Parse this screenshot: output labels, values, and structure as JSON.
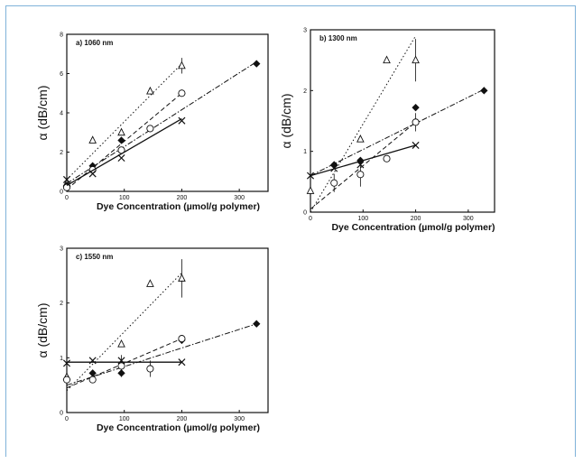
{
  "chart_data": [
    {
      "type": "scatter",
      "title": "a) 1060 nm",
      "xlabel": "Dye Concentration (µmol/g polymer)",
      "ylabel": "α (dB/cm)",
      "xlim": [
        0,
        350
      ],
      "ylim": [
        0,
        8
      ],
      "xticks": [
        "0",
        "100",
        "200",
        "300"
      ],
      "yticks": [
        "0",
        "2",
        "4",
        "6",
        "8"
      ],
      "series": [
        {
          "marker": "triangle",
          "line": "dotted",
          "points": [
            [
              0,
              0.4
            ],
            [
              45,
              2.6
            ],
            [
              95,
              3.0
            ],
            [
              145,
              5.1
            ],
            [
              200,
              6.4
            ]
          ],
          "errors": [
            0,
            0,
            0,
            0,
            0.4
          ],
          "fit": [
            [
              0,
              0.6
            ],
            [
              200,
              6.5
            ]
          ]
        },
        {
          "marker": "diamond",
          "line": "dashdot",
          "points": [
            [
              0,
              0.3
            ],
            [
              45,
              1.3
            ],
            [
              95,
              2.6
            ],
            [
              200,
              5.0
            ],
            [
              330,
              6.5
            ]
          ],
          "errors": [
            0,
            0,
            0,
            0,
            0
          ],
          "fit": [
            [
              0,
              0.4
            ],
            [
              330,
              6.6
            ]
          ]
        },
        {
          "marker": "circle",
          "line": "dashed",
          "points": [
            [
              0,
              0.2
            ],
            [
              45,
              1.1
            ],
            [
              95,
              2.1
            ],
            [
              145,
              3.2
            ],
            [
              200,
              5.0
            ]
          ],
          "errors": [
            0,
            0,
            0,
            0,
            0
          ],
          "fit": [
            [
              0,
              0.1
            ],
            [
              200,
              5.0
            ]
          ]
        },
        {
          "marker": "cross",
          "line": "solid",
          "points": [
            [
              0,
              0.6
            ],
            [
              45,
              0.9
            ],
            [
              95,
              1.7
            ],
            [
              200,
              3.6
            ]
          ],
          "errors": [
            0,
            0,
            0,
            0
          ],
          "fit": [
            [
              0,
              0.3
            ],
            [
              200,
              3.7
            ]
          ]
        }
      ]
    },
    {
      "type": "scatter",
      "title": "b) 1300 nm",
      "xlabel": "Dye Concentration (µmol/g polymer)",
      "ylabel": "α (dB/cm)",
      "xlim": [
        0,
        350
      ],
      "ylim": [
        0,
        3
      ],
      "xticks": [
        "0",
        "100",
        "200",
        "300"
      ],
      "yticks": [
        "0",
        "1",
        "2",
        "3"
      ],
      "series": [
        {
          "marker": "triangle",
          "line": "dotted",
          "points": [
            [
              0,
              0.35
            ],
            [
              95,
              1.2
            ],
            [
              145,
              2.5
            ],
            [
              200,
              2.5
            ]
          ],
          "errors": [
            0,
            0,
            0,
            0.35
          ],
          "fit": [
            [
              0,
              0.0
            ],
            [
              200,
              2.9
            ]
          ]
        },
        {
          "marker": "diamond",
          "line": "dashdot",
          "points": [
            [
              45,
              0.78
            ],
            [
              95,
              0.85
            ],
            [
              200,
              1.72
            ],
            [
              330,
              2.0
            ]
          ],
          "errors": [
            0,
            0,
            0,
            0
          ],
          "fit": [
            [
              0,
              0.6
            ],
            [
              330,
              2.02
            ]
          ]
        },
        {
          "marker": "circle",
          "line": "dashed",
          "points": [
            [
              45,
              0.48
            ],
            [
              95,
              0.62
            ],
            [
              145,
              0.88
            ],
            [
              200,
              1.48
            ]
          ],
          "errors": [
            0.15,
            0.2,
            0,
            0.15
          ],
          "fit": [
            [
              0,
              0.05
            ],
            [
              200,
              1.48
            ]
          ]
        },
        {
          "marker": "cross",
          "line": "solid",
          "points": [
            [
              0,
              0.6
            ],
            [
              45,
              0.72
            ],
            [
              95,
              0.78
            ],
            [
              200,
              1.1
            ]
          ],
          "errors": [
            0,
            0,
            0,
            0
          ],
          "fit": [
            [
              0,
              0.6
            ],
            [
              200,
              1.1
            ]
          ]
        }
      ]
    },
    {
      "type": "scatter",
      "title": "c) 1550 nm",
      "xlabel": "Dye Concentration (µmol/g polymer)",
      "ylabel": "α (dB/cm)",
      "xlim": [
        0,
        350
      ],
      "ylim": [
        0,
        3
      ],
      "xticks": [
        "0",
        "100",
        "200",
        "300"
      ],
      "yticks": [
        "0",
        "1",
        "2",
        "3"
      ],
      "series": [
        {
          "marker": "triangle",
          "line": "dotted",
          "points": [
            [
              0,
              0.65
            ],
            [
              95,
              1.25
            ],
            [
              145,
              2.35
            ],
            [
              200,
              2.45
            ]
          ],
          "errors": [
            0,
            0,
            0,
            0.35
          ],
          "fit": [
            [
              0,
              0.4
            ],
            [
              200,
              2.55
            ]
          ]
        },
        {
          "marker": "diamond",
          "line": "dashdot",
          "points": [
            [
              45,
              0.72
            ],
            [
              95,
              0.72
            ],
            [
              200,
              1.32
            ],
            [
              330,
              1.62
            ]
          ],
          "errors": [
            0,
            0,
            0,
            0
          ],
          "fit": [
            [
              0,
              0.5
            ],
            [
              330,
              1.62
            ]
          ]
        },
        {
          "marker": "circle",
          "line": "dashed",
          "points": [
            [
              0,
              0.6
            ],
            [
              45,
              0.6
            ],
            [
              95,
              0.85
            ],
            [
              145,
              0.8
            ],
            [
              200,
              1.35
            ]
          ],
          "errors": [
            0,
            0,
            0.2,
            0.15,
            0
          ],
          "fit": [
            [
              0,
              0.45
            ],
            [
              200,
              1.35
            ]
          ]
        },
        {
          "marker": "cross",
          "line": "solid",
          "points": [
            [
              0,
              0.9
            ],
            [
              45,
              0.95
            ],
            [
              95,
              0.95
            ],
            [
              200,
              0.92
            ]
          ],
          "errors": [
            0,
            0,
            0,
            0
          ],
          "fit": [
            [
              0,
              0.92
            ],
            [
              200,
              0.92
            ]
          ]
        }
      ]
    }
  ]
}
